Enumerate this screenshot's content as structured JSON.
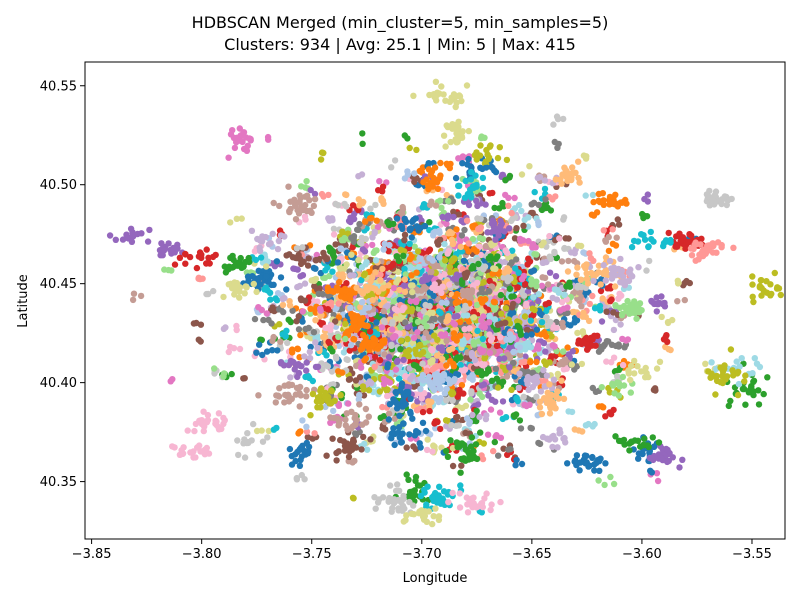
{
  "chart_data": {
    "type": "scatter",
    "title": "HDBSCAN Merged (min_cluster=5, min_samples=5)",
    "subtitle": "Clusters: 934 | Avg: 25.1 | Min: 5 | Max: 415",
    "xlabel": "Longitude",
    "ylabel": "Latitude",
    "xlim": [
      -3.853,
      -3.535
    ],
    "ylim": [
      40.321,
      40.562
    ],
    "xticks": [
      -3.85,
      -3.8,
      -3.75,
      -3.7,
      -3.65,
      -3.6,
      -3.55
    ],
    "xtick_labels": [
      "−3.85",
      "−3.80",
      "−3.75",
      "−3.70",
      "−3.65",
      "−3.60",
      "−3.55"
    ],
    "yticks": [
      40.35,
      40.4,
      40.45,
      40.5,
      40.55
    ],
    "ytick_labels": [
      "40.35",
      "40.40",
      "40.45",
      "40.50",
      "40.55"
    ],
    "grid": false,
    "legend": "none",
    "colors": [
      "#1f77b4",
      "#ff7f0e",
      "#2ca02c",
      "#d62728",
      "#9467bd",
      "#8c564b",
      "#e377c2",
      "#7f7f7f",
      "#bcbd22",
      "#17becf",
      "#aec7e8",
      "#ffbb78",
      "#98df8a",
      "#ff9896",
      "#c5b0d5",
      "#c49c94",
      "#f7b6d2",
      "#c7c7c7",
      "#dbdb8d",
      "#9edae5"
    ],
    "clusters": [
      {
        "color": "#dbdb8d",
        "lon": -3.69,
        "lat": 40.545
      },
      {
        "color": "#dbdb8d",
        "lon": -3.684,
        "lat": 40.526
      },
      {
        "color": "#e377c2",
        "lon": -3.781,
        "lat": 40.522
      },
      {
        "color": "#1f77b4",
        "lon": -3.675,
        "lat": 40.51
      },
      {
        "color": "#bcbd22",
        "lon": -3.668,
        "lat": 40.515
      },
      {
        "color": "#ff7f0e",
        "lon": -3.613,
        "lat": 40.492
      },
      {
        "color": "#d62728",
        "lon": -3.579,
        "lat": 40.471
      },
      {
        "color": "#ff9896",
        "lon": -3.571,
        "lat": 40.467
      },
      {
        "color": "#9467bd",
        "lon": -3.832,
        "lat": 40.474
      },
      {
        "color": "#9467bd",
        "lon": -3.816,
        "lat": 40.467
      },
      {
        "color": "#d62728",
        "lon": -3.803,
        "lat": 40.463
      },
      {
        "color": "#2ca02c",
        "lon": -3.784,
        "lat": 40.46
      },
      {
        "color": "#1f77b4",
        "lon": -3.773,
        "lat": 40.452
      },
      {
        "color": "#c5b0d5",
        "lon": -3.77,
        "lat": 40.47
      },
      {
        "color": "#dbdb8d",
        "lon": -3.785,
        "lat": 40.446
      },
      {
        "color": "#c49c94",
        "lon": -3.757,
        "lat": 40.49
      },
      {
        "color": "#8c564b",
        "lon": -3.751,
        "lat": 40.463
      },
      {
        "color": "#bcbd22",
        "lon": -3.543,
        "lat": 40.447
      },
      {
        "color": "#2ca02c",
        "lon": -3.553,
        "lat": 40.397
      },
      {
        "color": "#9edae5",
        "lon": -3.556,
        "lat": 40.407
      },
      {
        "color": "#bcbd22",
        "lon": -3.563,
        "lat": 40.403
      },
      {
        "color": "#c7c7c7",
        "lon": -3.566,
        "lat": 40.493
      },
      {
        "color": "#f7b6d2",
        "lon": -3.797,
        "lat": 40.38
      },
      {
        "color": "#f7b6d2",
        "lon": -3.802,
        "lat": 40.365
      },
      {
        "color": "#c7c7c7",
        "lon": -3.777,
        "lat": 40.368
      },
      {
        "color": "#1f77b4",
        "lon": -3.755,
        "lat": 40.363
      },
      {
        "color": "#8c564b",
        "lon": -3.735,
        "lat": 40.368
      },
      {
        "color": "#2ca02c",
        "lon": -3.702,
        "lat": 40.347
      },
      {
        "color": "#c7c7c7",
        "lon": -3.713,
        "lat": 40.34
      },
      {
        "color": "#17becf",
        "lon": -3.693,
        "lat": 40.342
      },
      {
        "color": "#dbdb8d",
        "lon": -3.7,
        "lat": 40.333
      },
      {
        "color": "#f7b6d2",
        "lon": -3.677,
        "lat": 40.34
      },
      {
        "color": "#1f77b4",
        "lon": -3.598,
        "lat": 40.364
      },
      {
        "color": "#9467bd",
        "lon": -3.59,
        "lat": 40.362
      },
      {
        "color": "#2ca02c",
        "lon": -3.603,
        "lat": 40.369
      },
      {
        "color": "#98df8a",
        "lon": -3.61,
        "lat": 40.399
      },
      {
        "color": "#dbdb8d",
        "lon": -3.6,
        "lat": 40.405
      },
      {
        "color": "#1f77b4",
        "lon": -3.623,
        "lat": 40.36
      },
      {
        "color": "#c5b0d5",
        "lon": -3.64,
        "lat": 40.372
      },
      {
        "color": "#1f77b4",
        "lon": -3.709,
        "lat": 40.392
      },
      {
        "color": "#1f77b4",
        "lon": -3.705,
        "lat": 40.48
      },
      {
        "color": "#17becf",
        "lon": -3.676,
        "lat": 40.5
      },
      {
        "color": "#ff7f0e",
        "lon": -3.695,
        "lat": 40.502
      },
      {
        "color": "#9467bd",
        "lon": -3.665,
        "lat": 40.478
      },
      {
        "color": "#ff7f0e",
        "lon": -3.735,
        "lat": 40.445
      },
      {
        "color": "#98df8a",
        "lon": -3.605,
        "lat": 40.438
      },
      {
        "color": "#ffbb78",
        "lon": -3.62,
        "lat": 40.455
      },
      {
        "color": "#c5b0d5",
        "lon": -3.61,
        "lat": 40.456
      },
      {
        "color": "#9467bd",
        "lon": -3.591,
        "lat": 40.44
      },
      {
        "color": "#17becf",
        "lon": -3.595,
        "lat": 40.473
      },
      {
        "color": "#ffbb78",
        "lon": -3.633,
        "lat": 40.503
      },
      {
        "color": "#ffbb78",
        "lon": -3.72,
        "lat": 40.45
      },
      {
        "color": "#c49c94",
        "lon": -3.76,
        "lat": 40.395
      },
      {
        "color": "#ff7f0e",
        "lon": -3.73,
        "lat": 40.43
      },
      {
        "color": "#aec7e8",
        "lon": -3.693,
        "lat": 40.4
      },
      {
        "color": "#c5b0d5",
        "lon": -3.65,
        "lat": 40.4
      },
      {
        "color": "#ffbb78",
        "lon": -3.641,
        "lat": 40.39
      },
      {
        "color": "#c49c94",
        "lon": -3.732,
        "lat": 40.38
      },
      {
        "color": "#1f77b4",
        "lon": -3.709,
        "lat": 40.375
      },
      {
        "color": "#ff7f0e",
        "lon": -3.724,
        "lat": 40.42
      },
      {
        "color": "#d62728",
        "lon": -3.625,
        "lat": 40.42
      },
      {
        "color": "#9467bd",
        "lon": -3.756,
        "lat": 40.408
      },
      {
        "color": "#bcbd22",
        "lon": -3.743,
        "lat": 40.392
      },
      {
        "color": "#2ca02c",
        "lon": -3.681,
        "lat": 40.365
      }
    ],
    "point_count": 2600,
    "point_seed": 934
  }
}
